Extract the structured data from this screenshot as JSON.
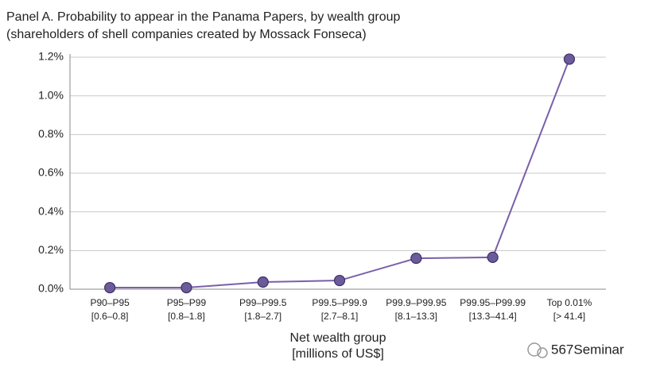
{
  "chart_data": {
    "type": "line",
    "title": "Panel A. Probability to appear in the Panama Papers, by wealth group",
    "subtitle": "(shareholders of shell companies created by Mossack Fonseca)",
    "categories": [
      "P90–P95",
      "P95–P99",
      "P99–P99.5",
      "P99.5–P99.9",
      "P99.9–P99.95",
      "P99.95–P99.99",
      "Top 0.01%"
    ],
    "category_ranges": [
      "[0.6–0.8]",
      "[0.8–1.8]",
      "[1.8–2.7]",
      "[2.7–8.1]",
      "[8.1–13.3]",
      "[13.3–41.4]",
      "[> 41.4]"
    ],
    "values": [
      0.008,
      0.008,
      0.037,
      0.045,
      0.16,
      0.165,
      1.19
    ],
    "color": "#7a5fa8",
    "marker_color": "#6b5b9a",
    "ylim": [
      0,
      1.2
    ],
    "yticks": [
      {
        "value": 0,
        "label": "0.0%"
      },
      {
        "value": 0.2,
        "label": "0.2%"
      },
      {
        "value": 0.4,
        "label": "0.4%"
      },
      {
        "value": 0.6,
        "label": "0.6%"
      },
      {
        "value": 0.8,
        "label": "0.8%"
      },
      {
        "value": 1.0,
        "label": "1.0%"
      },
      {
        "value": 1.2,
        "label": "1.2%"
      }
    ],
    "grid": true,
    "x_label": "Net wealth group",
    "x_label_unit": "[millions of US$]",
    "watermark": "567Seminar"
  }
}
